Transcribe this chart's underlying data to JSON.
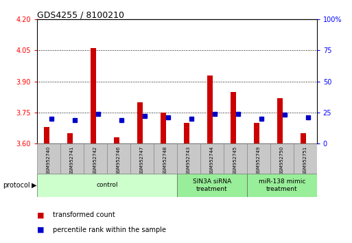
{
  "title": "GDS4255 / 8100210",
  "samples": [
    "GSM952740",
    "GSM952741",
    "GSM952742",
    "GSM952746",
    "GSM952747",
    "GSM952748",
    "GSM952743",
    "GSM952744",
    "GSM952745",
    "GSM952749",
    "GSM952750",
    "GSM952751"
  ],
  "transformed_count": [
    3.68,
    3.65,
    4.06,
    3.63,
    3.8,
    3.75,
    3.7,
    3.93,
    3.85,
    3.7,
    3.82,
    3.65
  ],
  "percentile_rank": [
    20,
    19,
    24,
    19,
    22,
    21,
    20,
    24,
    24,
    20,
    23,
    21
  ],
  "ylim_left": [
    3.6,
    4.2
  ],
  "ylim_right": [
    0,
    100
  ],
  "yticks_left": [
    3.6,
    3.75,
    3.9,
    4.05,
    4.2
  ],
  "yticks_right": [
    0,
    25,
    50,
    75,
    100
  ],
  "bar_color": "#cc0000",
  "dot_color": "#0000cc",
  "groups": [
    {
      "label": "control",
      "start": 0,
      "end": 6,
      "color": "#ccffcc"
    },
    {
      "label": "SIN3A siRNA\ntreatment",
      "start": 6,
      "end": 9,
      "color": "#99ee99"
    },
    {
      "label": "miR-138 mimic\ntreatment",
      "start": 9,
      "end": 12,
      "color": "#99ee99"
    }
  ],
  "protocol_label": "protocol",
  "legend_items": [
    {
      "label": "transformed count",
      "color": "#cc0000"
    },
    {
      "label": "percentile rank within the sample",
      "color": "#0000cc"
    }
  ],
  "grid_color": "black",
  "grid_style": "dotted"
}
